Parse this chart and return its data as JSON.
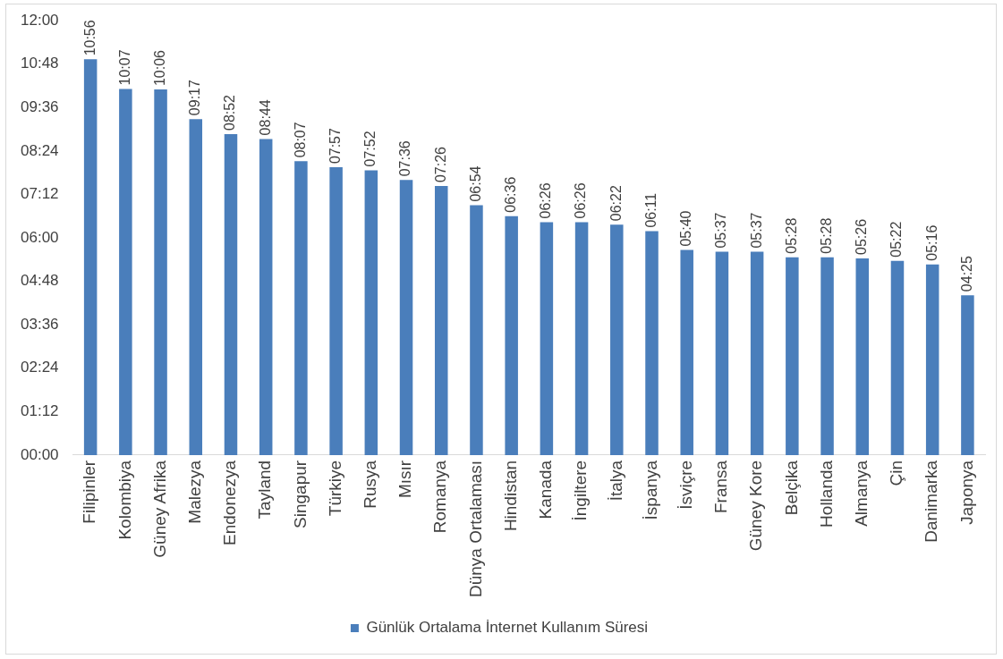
{
  "chart_data": {
    "type": "bar",
    "categories": [
      "Filipinler",
      "Kolombiya",
      "Güney Afrika",
      "Malezya",
      "Endonezya",
      "Tayland",
      "Singapur",
      "Türkiye",
      "Rusya",
      "Mısır",
      "Romanya",
      "Dünya Ortalaması",
      "Hindistan",
      "Kanada",
      "İngiltere",
      "İtalya",
      "İspanya",
      "İsviçre",
      "Fransa",
      "Güney Kore",
      "Belçika",
      "Hollanda",
      "Almanya",
      "Çin",
      "Danimarka",
      "Japonya"
    ],
    "series": [
      {
        "name": "Günlük Ortalama İnternet Kullanım Süresi",
        "color": "#4a7ebb",
        "values": [
          10.9333,
          10.1167,
          10.1,
          9.2833,
          8.8667,
          8.7333,
          8.1167,
          7.95,
          7.8667,
          7.6,
          7.4333,
          6.9,
          6.6,
          6.4333,
          6.4333,
          6.3667,
          6.1833,
          5.6667,
          5.6167,
          5.6167,
          5.4667,
          5.4667,
          5.4333,
          5.3667,
          5.2667,
          4.4167
        ],
        "value_labels": [
          "10:56",
          "10:07",
          "10:06",
          "09:17",
          "08:52",
          "08:44",
          "08:07",
          "07:57",
          "07:52",
          "07:36",
          "07:26",
          "06:54",
          "06:36",
          "06:26",
          "06:26",
          "06:22",
          "06:11",
          "05:40",
          "05:37",
          "05:37",
          "05:28",
          "05:28",
          "05:26",
          "05:22",
          "05:16",
          "04:25"
        ]
      }
    ],
    "ylim": [
      0,
      12
    ],
    "yticks": [
      {
        "value": 0,
        "label": "00:00"
      },
      {
        "value": 1.2,
        "label": "01:12"
      },
      {
        "value": 2.4,
        "label": "02:24"
      },
      {
        "value": 3.6,
        "label": "03:36"
      },
      {
        "value": 4.8,
        "label": "04:48"
      },
      {
        "value": 6,
        "label": "06:00"
      },
      {
        "value": 7.2,
        "label": "07:12"
      },
      {
        "value": 8.4,
        "label": "08:24"
      },
      {
        "value": 9.6,
        "label": "09:36"
      },
      {
        "value": 10.8,
        "label": "10:48"
      },
      {
        "value": 12,
        "label": "12:00"
      }
    ],
    "legend": "bottom"
  }
}
